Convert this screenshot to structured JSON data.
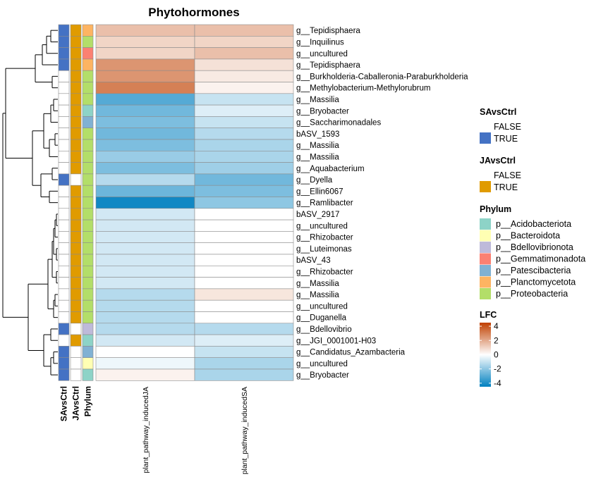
{
  "chart_data": {
    "type": "heatmap",
    "title": "Phytohormones",
    "columns": [
      "plant_pathway_inducedJA",
      "plant_pathway_inducedSA"
    ],
    "rows": [
      "g__Tepidisphaera",
      "g__Inquilinus",
      "g__uncultured",
      "g__Tepidisphaera",
      "g__Burkholderia-Caballeronia-Paraburkholderia",
      "g__Methylobacterium-Methylorubrum",
      "g__Massilia",
      "g__Bryobacter",
      "g__Saccharimonadales",
      "bASV_1593",
      "g__Massilia",
      "g__Massilia",
      "g__Aquabacterium",
      "g__Dyella",
      "g__Ellin6067",
      "g__Ramlibacter",
      "bASV_2917",
      "g__uncultured",
      "g__Rhizobacter",
      "g__Luteimonas",
      "bASV_43",
      "g__Rhizobacter",
      "g__Massilia",
      "g__Massilia",
      "g__uncultured",
      "g__Duganella",
      "g__Bdellovibrio",
      "g__JGI_0001001-H03",
      "g__Candidatus_Azambacteria",
      "g__uncultured",
      "g__Bryobacter"
    ],
    "values": [
      [
        1.5,
        1.5
      ],
      [
        1.0,
        1.0
      ],
      [
        1.0,
        1.5
      ],
      [
        2.5,
        0.7
      ],
      [
        2.5,
        0.5
      ],
      [
        3.0,
        0.3
      ],
      [
        -3.0,
        -1.0
      ],
      [
        -2.5,
        -0.6
      ],
      [
        -2.3,
        -1.0
      ],
      [
        -2.5,
        -1.3
      ],
      [
        -2.3,
        -1.5
      ],
      [
        -1.8,
        -1.5
      ],
      [
        -2.3,
        -1.7
      ],
      [
        -1.3,
        -2.5
      ],
      [
        -2.6,
        -2.3
      ],
      [
        -4.2,
        -2.0
      ],
      [
        -0.8,
        0
      ],
      [
        -0.8,
        0
      ],
      [
        -0.8,
        0
      ],
      [
        -0.8,
        0
      ],
      [
        -0.8,
        0
      ],
      [
        -0.8,
        0
      ],
      [
        -0.8,
        0
      ],
      [
        -1.3,
        0.6
      ],
      [
        -1.3,
        0
      ],
      [
        -1.3,
        0
      ],
      [
        -1.3,
        -1.3
      ],
      [
        -0.8,
        -0.6
      ],
      [
        0,
        -1.0
      ],
      [
        -0.3,
        -1.5
      ],
      [
        0.3,
        -1.5
      ]
    ],
    "annotations": {
      "labels": [
        "SAvsCtrl",
        "JAvsCtrl",
        "Phylum"
      ],
      "SAvsCtrl": [
        "TRUE",
        "TRUE",
        "TRUE",
        "TRUE",
        "FALSE",
        "FALSE",
        "FALSE",
        "FALSE",
        "FALSE",
        "FALSE",
        "FALSE",
        "FALSE",
        "FALSE",
        "TRUE",
        "FALSE",
        "FALSE",
        "FALSE",
        "FALSE",
        "FALSE",
        "FALSE",
        "FALSE",
        "FALSE",
        "FALSE",
        "FALSE",
        "FALSE",
        "FALSE",
        "TRUE",
        "FALSE",
        "TRUE",
        "TRUE",
        "TRUE"
      ],
      "JAvsCtrl": [
        "TRUE",
        "TRUE",
        "TRUE",
        "TRUE",
        "TRUE",
        "TRUE",
        "TRUE",
        "TRUE",
        "TRUE",
        "TRUE",
        "TRUE",
        "TRUE",
        "TRUE",
        "FALSE",
        "TRUE",
        "TRUE",
        "TRUE",
        "TRUE",
        "TRUE",
        "TRUE",
        "TRUE",
        "TRUE",
        "TRUE",
        "TRUE",
        "TRUE",
        "TRUE",
        "FALSE",
        "TRUE",
        "FALSE",
        "FALSE",
        "FALSE"
      ],
      "Phylum": [
        "p__Planctomycetota",
        "p__Proteobacteria",
        "p__Gemmatimonadota",
        "p__Planctomycetota",
        "p__Proteobacteria",
        "p__Proteobacteria",
        "p__Proteobacteria",
        "p__Acidobacteriota",
        "p__Patescibacteria",
        "p__Proteobacteria",
        "p__Proteobacteria",
        "p__Proteobacteria",
        "p__Proteobacteria",
        "p__Proteobacteria",
        "p__Proteobacteria",
        "p__Proteobacteria",
        "p__Proteobacteria",
        "p__Proteobacteria",
        "p__Proteobacteria",
        "p__Proteobacteria",
        "p__Proteobacteria",
        "p__Proteobacteria",
        "p__Proteobacteria",
        "p__Proteobacteria",
        "p__Proteobacteria",
        "p__Proteobacteria",
        "p__Bdellovibrionota",
        "p__Acidobacteriota",
        "p__Patescibacteria",
        "p__Bacteroidota",
        "p__Acidobacteriota"
      ]
    },
    "colors": {
      "TRUE_SA": "#4472c4",
      "TRUE_JA": "#e09b00",
      "FALSE": "#ffffff",
      "Phylum": {
        "p__Acidobacteriota": "#8dd3c7",
        "p__Bacteroidota": "#ffffb3",
        "p__Bdellovibrionota": "#bebada",
        "p__Gemmatimonadota": "#fb8072",
        "p__Patescibacteria": "#80b1d3",
        "p__Planctomycetota": "#fdb462",
        "p__Proteobacteria": "#b3de69"
      },
      "LFC_low": "#0080c0",
      "LFC_mid": "#ffffff",
      "LFC_high": "#c04000"
    },
    "legends": [
      {
        "title": "SAvsCtrl",
        "items": [
          "FALSE",
          "TRUE"
        ]
      },
      {
        "title": "JAvsCtrl",
        "items": [
          "FALSE",
          "TRUE"
        ]
      },
      {
        "title": "Phylum",
        "items": [
          "p__Acidobacteriota",
          "p__Bacteroidota",
          "p__Bdellovibrionota",
          "p__Gemmatimonadota",
          "p__Patescibacteria",
          "p__Planctomycetota",
          "p__Proteobacteria"
        ]
      },
      {
        "title": "LFC",
        "ticks": [
          "4",
          "2",
          "0",
          "-2",
          "-4"
        ],
        "range": [
          -4.5,
          4.5
        ]
      }
    ]
  }
}
